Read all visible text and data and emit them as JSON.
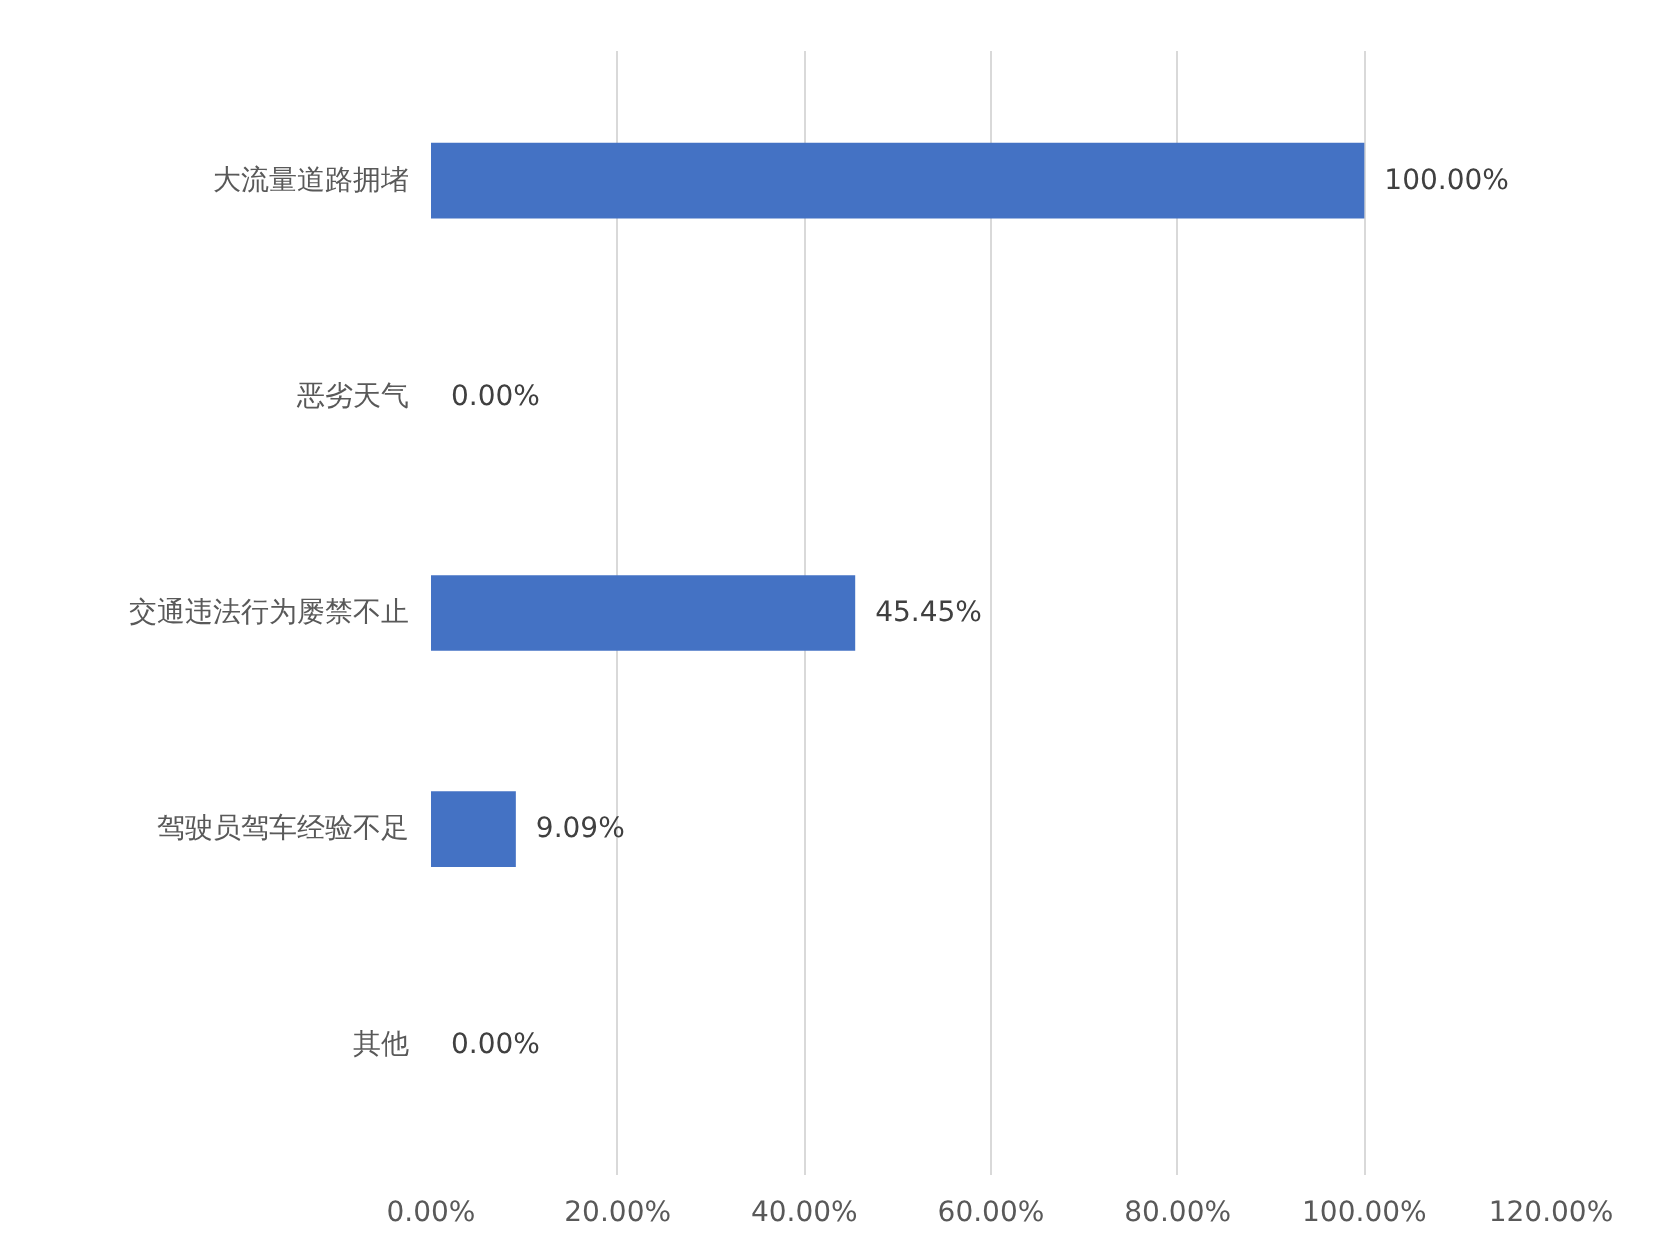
{
  "chart_data": {
    "type": "bar",
    "orientation": "horizontal",
    "categories": [
      "大流量道路拥堵",
      "恶劣天气",
      "交通违法行为屡禁不止",
      "驾驶员驾车经验不足",
      "其他"
    ],
    "values": [
      100,
      0,
      45.45,
      9.09,
      0
    ],
    "value_labels": [
      "100.00%",
      "0.00%",
      "45.45%",
      "9.09%",
      "0.00%"
    ],
    "color": "#4472c4",
    "xlim": [
      0,
      120
    ],
    "xticks": [
      {
        "value": 0,
        "label": "0.00%"
      },
      {
        "value": 20,
        "label": "20.00%"
      },
      {
        "value": 40,
        "label": "40.00%"
      },
      {
        "value": 60,
        "label": "60.00%"
      },
      {
        "value": 80,
        "label": "80.00%"
      },
      {
        "value": 100,
        "label": "100.00%"
      },
      {
        "value": 120,
        "label": "120.00%"
      }
    ],
    "grid": "x"
  }
}
